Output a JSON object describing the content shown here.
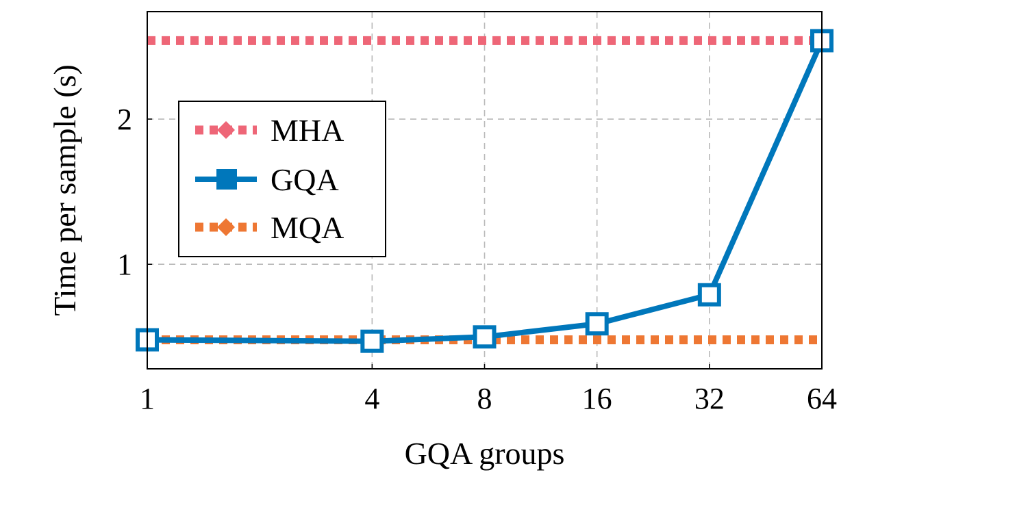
{
  "chart_data": {
    "type": "line",
    "title": "",
    "xlabel": "GQA groups",
    "ylabel": "Time per sample (s)",
    "x_scale": "log2",
    "x": [
      1,
      4,
      8,
      16,
      32,
      64
    ],
    "x_tick_labels": [
      "1",
      "4",
      "8",
      "16",
      "32",
      "64"
    ],
    "xlim": [
      1,
      64
    ],
    "ylim": [
      0.28,
      2.74
    ],
    "y_ticks": [
      1,
      2
    ],
    "y_tick_labels": [
      "1",
      "2"
    ],
    "grid": true,
    "legend_position": "center-left",
    "series": [
      {
        "name": "MHA",
        "style": "dotted",
        "marker": "diamond",
        "color": "#ee6677",
        "values": [
          2.54,
          2.54,
          2.54,
          2.54,
          2.54,
          2.54
        ]
      },
      {
        "name": "GQA",
        "style": "solid",
        "marker": "square",
        "color": "#0077bb",
        "values": [
          0.48,
          0.47,
          0.5,
          0.59,
          0.79,
          2.54
        ]
      },
      {
        "name": "MQA",
        "style": "dotted",
        "marker": "diamond",
        "color": "#ee7733",
        "values": [
          0.48,
          0.48,
          0.48,
          0.48,
          0.48,
          0.48
        ]
      }
    ]
  }
}
